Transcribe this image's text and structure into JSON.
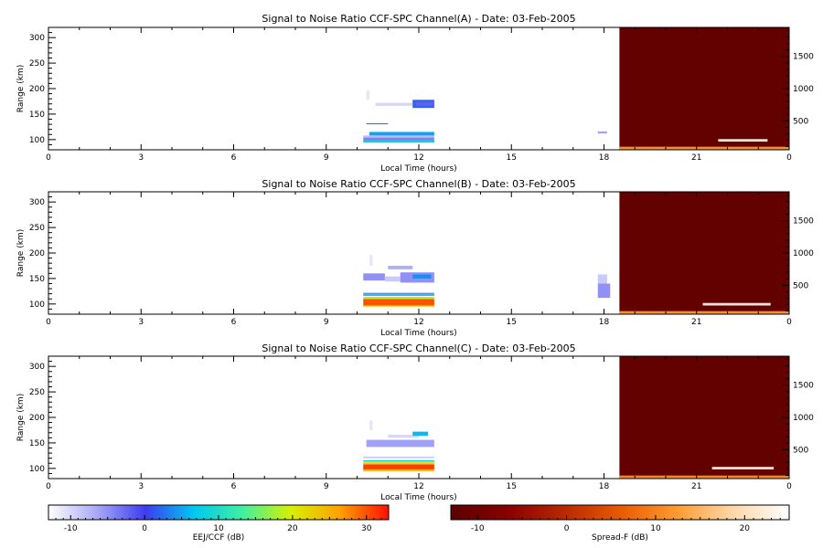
{
  "chart_data": [
    {
      "type": "heatmap",
      "title": "Signal to Noise Ratio CCF-SPC Channel(A) - Date: 03-Feb-2005",
      "xlabel": "Local Time (hours)",
      "ylabel": "Range (km)",
      "xlim": [
        0,
        24
      ],
      "ylim": [
        80,
        320
      ],
      "xticks": [
        "0",
        "3",
        "6",
        "9",
        "12",
        "15",
        "18",
        "21",
        "0"
      ],
      "yticks": [
        "100",
        "150",
        "200",
        "250",
        "300"
      ],
      "right_axis": {
        "ticks": [
          "500",
          "1000",
          "1500"
        ],
        "ylim": [
          50,
          1950
        ]
      },
      "eej_patches": [
        {
          "x0": 10.2,
          "x1": 12.5,
          "y0": 94,
          "y1": 98,
          "value": 8
        },
        {
          "x0": 10.2,
          "x1": 12.5,
          "y0": 98,
          "y1": 104,
          "value": -4
        },
        {
          "x0": 10.2,
          "x1": 12.5,
          "y0": 104,
          "y1": 108,
          "value": -8
        },
        {
          "x0": 10.4,
          "x1": 12.5,
          "y0": 108,
          "y1": 115,
          "value": 5
        },
        {
          "x0": 10.3,
          "x1": 11.0,
          "y0": 130,
          "y1": 132,
          "value": 3
        },
        {
          "x0": 10.6,
          "x1": 11.8,
          "y0": 166,
          "y1": 172,
          "value": -10
        },
        {
          "x0": 11.8,
          "x1": 12.5,
          "y0": 162,
          "y1": 178,
          "value": 2
        },
        {
          "x0": 11.9,
          "x1": 12.5,
          "y0": 166,
          "y1": 174,
          "value": -2
        },
        {
          "x0": 10.3,
          "x1": 10.4,
          "y0": 178,
          "y1": 196,
          "value": -11
        },
        {
          "x0": 17.8,
          "x1": 18.1,
          "y0": 112,
          "y1": 116,
          "value": -6
        }
      ],
      "spread_f_start": 18.5,
      "spread_f_features": [
        {
          "x0": 18.5,
          "x1": 24.0,
          "y0": 80,
          "y1": 86,
          "value": 13
        },
        {
          "x0": 21.7,
          "x1": 23.3,
          "y0": 96,
          "y1": 101,
          "value": 24
        }
      ]
    },
    {
      "type": "heatmap",
      "title": "Signal to Noise Ratio CCF-SPC Channel(B) - Date: 03-Feb-2005",
      "xlabel": "Local Time (hours)",
      "ylabel": "Range (km)",
      "xlim": [
        0,
        24
      ],
      "ylim": [
        80,
        320
      ],
      "xticks": [
        "0",
        "3",
        "6",
        "9",
        "12",
        "15",
        "18",
        "21",
        "0"
      ],
      "yticks": [
        "100",
        "150",
        "200",
        "250",
        "300"
      ],
      "right_axis": {
        "ticks": [
          "500",
          "1000",
          "1500"
        ],
        "ylim": [
          50,
          1950
        ]
      },
      "eej_patches": [
        {
          "x0": 10.2,
          "x1": 12.5,
          "y0": 94,
          "y1": 97,
          "value": 20
        },
        {
          "x0": 10.2,
          "x1": 12.5,
          "y0": 97,
          "y1": 110,
          "value": 30
        },
        {
          "x0": 10.2,
          "x1": 12.5,
          "y0": 110,
          "y1": 114,
          "value": 18
        },
        {
          "x0": 10.2,
          "x1": 12.5,
          "y0": 116,
          "y1": 119,
          "value": 6
        },
        {
          "x0": 10.2,
          "x1": 12.5,
          "y0": 119,
          "y1": 122,
          "value": -4
        },
        {
          "x0": 10.2,
          "x1": 10.9,
          "y0": 146,
          "y1": 160,
          "value": -5
        },
        {
          "x0": 10.9,
          "x1": 11.4,
          "y0": 144,
          "y1": 154,
          "value": -9
        },
        {
          "x0": 11.4,
          "x1": 12.5,
          "y0": 142,
          "y1": 162,
          "value": -5
        },
        {
          "x0": 11.8,
          "x1": 12.4,
          "y0": 150,
          "y1": 158,
          "value": 4
        },
        {
          "x0": 11.0,
          "x1": 11.8,
          "y0": 168,
          "y1": 175,
          "value": -7
        },
        {
          "x0": 10.4,
          "x1": 10.5,
          "y0": 175,
          "y1": 196,
          "value": -11
        },
        {
          "x0": 17.8,
          "x1": 18.2,
          "y0": 112,
          "y1": 140,
          "value": -5
        },
        {
          "x0": 17.8,
          "x1": 18.1,
          "y0": 140,
          "y1": 158,
          "value": -9
        }
      ],
      "spread_f_start": 18.5,
      "spread_f_features": [
        {
          "x0": 18.5,
          "x1": 24.0,
          "y0": 80,
          "y1": 86,
          "value": 13
        },
        {
          "x0": 21.2,
          "x1": 23.4,
          "y0": 97,
          "y1": 102,
          "value": 24
        }
      ]
    },
    {
      "type": "heatmap",
      "title": "Signal to Noise Ratio CCF-SPC Channel(C) - Date: 03-Feb-2005",
      "xlabel": "Local Time (hours)",
      "ylabel": "Range (km)",
      "xlim": [
        0,
        24
      ],
      "ylim": [
        80,
        320
      ],
      "xticks": [
        "0",
        "3",
        "6",
        "9",
        "12",
        "15",
        "18",
        "21",
        "0"
      ],
      "yticks": [
        "100",
        "150",
        "200",
        "250",
        "300"
      ],
      "right_axis": {
        "ticks": [
          "500",
          "1000",
          "1500"
        ],
        "ylim": [
          50,
          1950
        ]
      },
      "eej_patches": [
        {
          "x0": 10.2,
          "x1": 12.5,
          "y0": 94,
          "y1": 98,
          "value": 24
        },
        {
          "x0": 10.2,
          "x1": 12.5,
          "y0": 98,
          "y1": 108,
          "value": 31
        },
        {
          "x0": 10.2,
          "x1": 12.5,
          "y0": 108,
          "y1": 112,
          "value": 22
        },
        {
          "x0": 10.2,
          "x1": 12.5,
          "y0": 113,
          "y1": 116,
          "value": 8
        },
        {
          "x0": 10.2,
          "x1": 12.5,
          "y0": 120,
          "y1": 123,
          "value": -9
        },
        {
          "x0": 10.3,
          "x1": 12.5,
          "y0": 142,
          "y1": 156,
          "value": -6
        },
        {
          "x0": 11.0,
          "x1": 12.0,
          "y0": 160,
          "y1": 166,
          "value": -10
        },
        {
          "x0": 11.8,
          "x1": 12.3,
          "y0": 164,
          "y1": 172,
          "value": 6
        },
        {
          "x0": 10.4,
          "x1": 10.5,
          "y0": 175,
          "y1": 194,
          "value": -11
        }
      ],
      "spread_f_start": 18.5,
      "spread_f_features": [
        {
          "x0": 18.5,
          "x1": 24.0,
          "y0": 80,
          "y1": 86,
          "value": 12
        },
        {
          "x0": 21.5,
          "x1": 23.5,
          "y0": 98,
          "y1": 103,
          "value": 24
        }
      ]
    }
  ],
  "colorbars": [
    {
      "label": "EEJ/CCF (dB)",
      "range": [
        -13,
        33
      ],
      "ticks": [
        "-10",
        "0",
        "10",
        "20",
        "30"
      ],
      "tick_values": [
        -10,
        0,
        10,
        20,
        30
      ],
      "colors": [
        "#ffffff",
        "#a8a8f6",
        "#3c3cf0",
        "#00c8f0",
        "#40f0a0",
        "#d8f000",
        "#ffa000",
        "#ff1000"
      ]
    },
    {
      "label": "Spread-F (dB)",
      "range": [
        -13,
        25
      ],
      "ticks": [
        "-10",
        "0",
        "10",
        "20"
      ],
      "tick_values": [
        -10,
        0,
        10,
        20
      ],
      "colors": [
        "#5c0000",
        "#880000",
        "#b82800",
        "#e85a00",
        "#ff9a30",
        "#ffd8a8",
        "#ffffff"
      ]
    }
  ]
}
